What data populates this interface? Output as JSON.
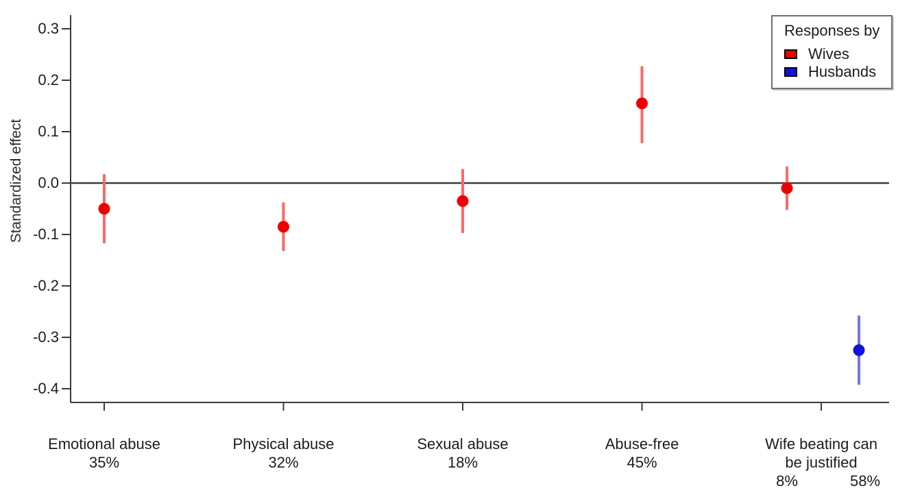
{
  "chart_data": {
    "type": "scatter",
    "subtype": "point-estimates-with-confidence-intervals",
    "title": "",
    "xlabel": "",
    "ylabel": "Standardized effect",
    "ylim": [
      -0.43,
      0.33
    ],
    "grid": false,
    "zero_reference_line": 0.0,
    "axis_color": "#3a3a3a",
    "y_ticks": [
      {
        "value": 0.3,
        "label": "0.3"
      },
      {
        "value": 0.2,
        "label": "0.2"
      },
      {
        "value": 0.1,
        "label": "0.1"
      },
      {
        "value": 0.0,
        "label": "0.0"
      },
      {
        "value": -0.1,
        "label": "-0.1"
      },
      {
        "value": -0.2,
        "label": "-0.2"
      },
      {
        "value": -0.3,
        "label": "-0.3"
      },
      {
        "value": -0.4,
        "label": "-0.4"
      }
    ],
    "categories": [
      {
        "label_lines": [
          "Emotional abuse"
        ],
        "percent_labels": [
          {
            "text": "35%",
            "dx": 0
          }
        ]
      },
      {
        "label_lines": [
          "Physical abuse"
        ],
        "percent_labels": [
          {
            "text": "32%",
            "dx": 0
          }
        ]
      },
      {
        "label_lines": [
          "Sexual abuse"
        ],
        "percent_labels": [
          {
            "text": "18%",
            "dx": 0
          }
        ]
      },
      {
        "label_lines": [
          "Abuse-free"
        ],
        "percent_labels": [
          {
            "text": "45%",
            "dx": 0
          }
        ]
      },
      {
        "label_lines": [
          "Wife beating can",
          "be justified"
        ],
        "percent_labels": [
          {
            "text": "8%",
            "dx": -50
          },
          {
            "text": "58%",
            "dx": 64
          }
        ]
      }
    ],
    "series_colors": {
      "Wives": {
        "point": "#ee0000",
        "bar": "#ff6666"
      },
      "Husbands": {
        "point": "#1212dc",
        "bar": "#7474ec"
      }
    },
    "points": [
      {
        "series": "Wives",
        "category_index": 0,
        "dx": 0,
        "estimate": -0.05,
        "ci_low": -0.115,
        "ci_high": 0.015
      },
      {
        "series": "Wives",
        "category_index": 1,
        "dx": 0,
        "estimate": -0.085,
        "ci_low": -0.13,
        "ci_high": -0.04
      },
      {
        "series": "Wives",
        "category_index": 2,
        "dx": 0,
        "estimate": -0.035,
        "ci_low": -0.095,
        "ci_high": 0.025
      },
      {
        "series": "Wives",
        "category_index": 3,
        "dx": 0,
        "estimate": 0.155,
        "ci_low": 0.08,
        "ci_high": 0.225
      },
      {
        "series": "Wives",
        "category_index": 4,
        "dx": -50,
        "estimate": -0.01,
        "ci_low": -0.05,
        "ci_high": 0.03
      },
      {
        "series": "Husbands",
        "category_index": 4,
        "dx": 55,
        "estimate": -0.325,
        "ci_low": -0.39,
        "ci_high": -0.26
      }
    ],
    "legend": {
      "title": "Responses by",
      "position": "top-right",
      "items": [
        {
          "label": "Wives",
          "color": "#ee0000"
        },
        {
          "label": "Husbands",
          "color": "#1212dc"
        }
      ]
    }
  }
}
